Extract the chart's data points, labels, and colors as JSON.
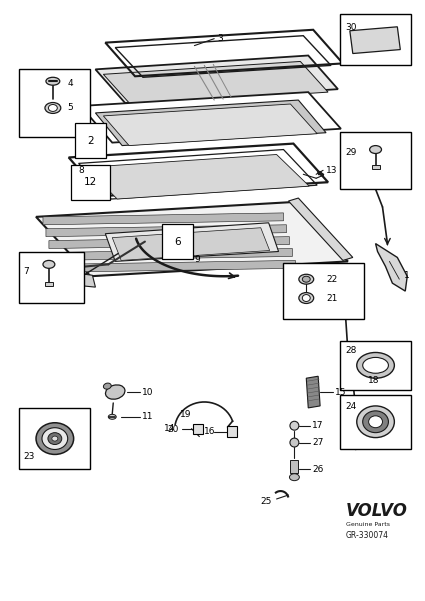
{
  "background_color": "#ffffff",
  "line_color": "#1a1a1a",
  "fig_width": 4.25,
  "fig_height": 6.01,
  "dpi": 100,
  "volvo_text": "VOLVO",
  "genuine_parts": "Genuine Parts",
  "part_number": "GR-330074"
}
